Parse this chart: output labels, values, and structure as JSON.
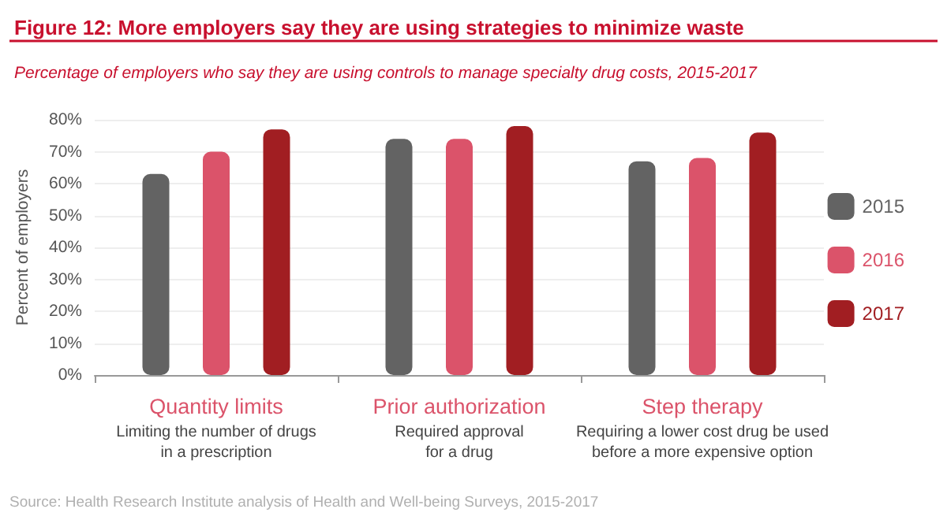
{
  "chart_data": {
    "type": "bar",
    "title": "Figure 12: More employers say they are using strategies to minimize waste",
    "subtitle": "Percentage of employers who say they are using controls to manage specialty drug costs, 2015-2017",
    "ylabel": "Percent of employers",
    "categories": [
      "Quantity limits\nLimiting the number of drugs\nin a prescription",
      "Prior authorization\nRequired approval\nfor a drug",
      "Step therapy\nRequiring a lower cost drug be used\nbefore a more expensive option"
    ],
    "series": [
      {
        "name": "2015",
        "color": "#636363",
        "values": [
          63,
          74,
          67
        ]
      },
      {
        "name": "2016",
        "color": "#db536a",
        "values": [
          70,
          74,
          68
        ]
      },
      {
        "name": "2017",
        "color": "#a11e22",
        "values": [
          77,
          78,
          76
        ]
      }
    ],
    "ylim": [
      0,
      80
    ],
    "yticks": [
      {
        "value": 0,
        "label": "0%"
      },
      {
        "value": 10,
        "label": "10%"
      },
      {
        "value": 20,
        "label": "20%"
      },
      {
        "value": 30,
        "label": "30%"
      },
      {
        "value": 40,
        "label": "40%"
      },
      {
        "value": 50,
        "label": "50%"
      },
      {
        "value": 60,
        "label": "60%"
      },
      {
        "value": 70,
        "label": "70%"
      },
      {
        "value": 80,
        "label": "80%"
      }
    ],
    "grid": "y",
    "legend": "right",
    "annotations": [
      "Source: Health Research Institute analysis of Health and Well-being Surveys, 2015-2017"
    ]
  }
}
